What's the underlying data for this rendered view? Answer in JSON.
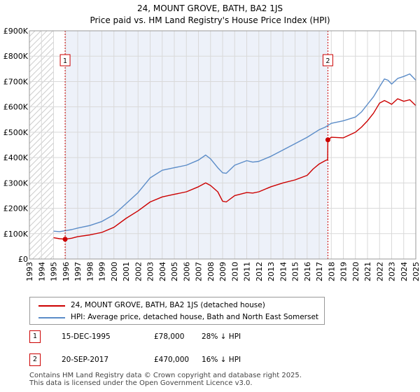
{
  "chart_data": {
    "type": "line",
    "title": "24, MOUNT GROVE, BATH, BA2 1JS",
    "subtitle": "Price paid vs. HM Land Registry's House Price Index (HPI)",
    "xlim": [
      1993,
      2025
    ],
    "ylim": [
      0,
      900000
    ],
    "y_ticks": [
      0,
      100000,
      200000,
      300000,
      400000,
      500000,
      600000,
      700000,
      800000,
      900000
    ],
    "y_tick_labels": [
      "£0",
      "£100K",
      "£200K",
      "£300K",
      "£400K",
      "£500K",
      "£600K",
      "£700K",
      "£800K",
      "£900K"
    ],
    "x_ticks": [
      1993,
      1994,
      1995,
      1996,
      1997,
      1998,
      1999,
      2000,
      2001,
      2002,
      2003,
      2004,
      2005,
      2006,
      2007,
      2008,
      2009,
      2010,
      2011,
      2012,
      2013,
      2014,
      2015,
      2016,
      2017,
      2018,
      2019,
      2020,
      2021,
      2022,
      2023,
      2024,
      2025
    ],
    "x_tick_labels": [
      "1993",
      "1994",
      "1995",
      "1996",
      "1997",
      "1998",
      "1999",
      "2000",
      "2001",
      "2002",
      "2003",
      "2004",
      "2005",
      "2006",
      "2007",
      "2008",
      "2009",
      "2010",
      "2011",
      "2012",
      "2013",
      "2014",
      "2015",
      "2016",
      "2017",
      "2018",
      "2019",
      "2020",
      "2021",
      "2022",
      "2023",
      "2024",
      "2025"
    ],
    "grid": true,
    "hatched_range": [
      1993,
      1995
    ],
    "shaded_range": [
      1995.96,
      2017.72
    ],
    "series": [
      {
        "name": "24, MOUNT GROVE, BATH, BA2 1JS (detached house)",
        "color": "#cc0000",
        "x": [
          1995.0,
          1995.5,
          1995.96,
          1996.5,
          1997,
          1998,
          1999,
          2000,
          2001,
          2002,
          2003,
          2004,
          2005,
          2006,
          2007,
          2007.6,
          2008,
          2008.6,
          2009.0,
          2009.3,
          2010,
          2011,
          2011.5,
          2012,
          2013,
          2014,
          2015,
          2016,
          2016.5,
          2017.0,
          2017.5,
          2017.7,
          2017.72,
          2018,
          2019,
          2020,
          2020.5,
          2021,
          2021.5,
          2022,
          2022.4,
          2022.7,
          2023,
          2023.5,
          2024,
          2024.5,
          2025
        ],
        "values": [
          84000,
          80000,
          78000,
          82000,
          88000,
          95000,
          105000,
          125000,
          160000,
          190000,
          225000,
          245000,
          255000,
          265000,
          285000,
          300000,
          290000,
          265000,
          228000,
          225000,
          250000,
          262000,
          260000,
          265000,
          285000,
          300000,
          312000,
          330000,
          355000,
          375000,
          388000,
          392000,
          470000,
          480000,
          478000,
          500000,
          520000,
          545000,
          575000,
          615000,
          625000,
          618000,
          610000,
          632000,
          622000,
          628000,
          605000
        ]
      },
      {
        "name": "HPI: Average price, detached house, Bath and North East Somerset",
        "color": "#5b8cc8",
        "x": [
          1995.0,
          1995.5,
          1996,
          1996.5,
          1997,
          1998,
          1999,
          2000,
          2001,
          2002,
          2003,
          2004,
          2005,
          2006,
          2007,
          2007.6,
          2008,
          2008.6,
          2009.0,
          2009.3,
          2010,
          2011,
          2011.5,
          2012,
          2013,
          2014,
          2015,
          2016,
          2017,
          2017.5,
          2018,
          2019,
          2020,
          2020.5,
          2021,
          2021.5,
          2022,
          2022.4,
          2022.7,
          2023,
          2023.5,
          2024,
          2024.5,
          2025
        ],
        "values": [
          110000,
          108000,
          112000,
          116000,
          122000,
          132000,
          148000,
          175000,
          218000,
          262000,
          320000,
          350000,
          360000,
          370000,
          390000,
          410000,
          395000,
          360000,
          340000,
          338000,
          370000,
          388000,
          382000,
          385000,
          405000,
          430000,
          455000,
          480000,
          510000,
          520000,
          535000,
          545000,
          560000,
          580000,
          610000,
          640000,
          680000,
          710000,
          705000,
          690000,
          712000,
          720000,
          730000,
          705000
        ]
      }
    ],
    "markers": [
      {
        "label": "1",
        "x": 1995.96,
        "y": 78000
      },
      {
        "label": "2",
        "x": 2017.72,
        "y": 470000
      }
    ]
  },
  "legend": {
    "items": [
      {
        "label": "24, MOUNT GROVE, BATH, BA2 1JS (detached house)",
        "color": "#cc0000"
      },
      {
        "label": "HPI: Average price, detached house, Bath and North East Somerset",
        "color": "#5b8cc8"
      }
    ]
  },
  "sales": [
    {
      "num": "1",
      "date": "15-DEC-1995",
      "price": "£78,000",
      "hpi": "28% ↓ HPI"
    },
    {
      "num": "2",
      "date": "20-SEP-2017",
      "price": "£470,000",
      "hpi": "16% ↓ HPI"
    }
  ],
  "footer": {
    "line1": "Contains HM Land Registry data © Crown copyright and database right 2025.",
    "line2": "This data is licensed under the Open Government Licence v3.0."
  }
}
